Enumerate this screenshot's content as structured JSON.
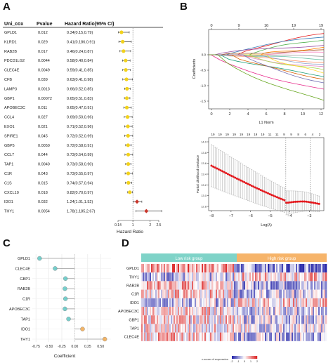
{
  "panels": {
    "a": "A",
    "b": "B",
    "c": "C",
    "d": "D"
  },
  "forest": {
    "headers": {
      "gene": "Uni_cox",
      "pvalue": "Pvalue",
      "hr": "Hazard Ratio(95% CI)"
    },
    "axis_title": "Hazard Ratio",
    "ticks": [
      "0.14",
      "1",
      "2",
      "2.5"
    ],
    "rows": [
      {
        "gene": "GPLD1",
        "p": "0.012",
        "hr_text": "0.34(0.15,0.79)",
        "hr": 0.34,
        "lo": 0.15,
        "hi": 0.79,
        "color": "#f2d21b"
      },
      {
        "gene": "KLRD1",
        "p": "0.029",
        "hr_text": "0.41(0.186,0.91)",
        "hr": 0.41,
        "lo": 0.186,
        "hi": 0.91,
        "color": "#f2d21b"
      },
      {
        "gene": "RAB2B",
        "p": "0.017",
        "hr_text": "0.46(0.24,0.87)",
        "hr": 0.46,
        "lo": 0.24,
        "hi": 0.87,
        "color": "#f2d21b"
      },
      {
        "gene": "PDCD1LG2",
        "p": "0.0044",
        "hr_text": "0.58(0.40,0.84)",
        "hr": 0.58,
        "lo": 0.4,
        "hi": 0.84,
        "color": "#f2d21b"
      },
      {
        "gene": "CLEC4E",
        "p": "0.0049",
        "hr_text": "0.59(0.41,0.85)",
        "hr": 0.59,
        "lo": 0.41,
        "hi": 0.85,
        "color": "#f2d21b"
      },
      {
        "gene": "CFB",
        "p": "0.039",
        "hr_text": "0.63(0.41,0.98)",
        "hr": 0.63,
        "lo": 0.41,
        "hi": 0.98,
        "color": "#f2d21b"
      },
      {
        "gene": "LAMP3",
        "p": "0.0013",
        "hr_text": "0.66(0.52,0.85)",
        "hr": 0.66,
        "lo": 0.52,
        "hi": 0.85,
        "color": "#f2d21b"
      },
      {
        "gene": "GBP1",
        "p": "0.00072",
        "hr_text": "0.65(0.51,0.83)",
        "hr": 0.65,
        "lo": 0.51,
        "hi": 0.83,
        "color": "#f2d21b"
      },
      {
        "gene": "APOBEC3C",
        "p": "0.011",
        "hr_text": "0.65(0.47,0.91)",
        "hr": 0.65,
        "lo": 0.47,
        "hi": 0.91,
        "color": "#f2d21b"
      },
      {
        "gene": "CCL4",
        "p": "0.027",
        "hr_text": "0.69(0.50,0.96)",
        "hr": 0.69,
        "lo": 0.5,
        "hi": 0.96,
        "color": "#f2d21b"
      },
      {
        "gene": "EXO1",
        "p": "0.021",
        "hr_text": "0.71(0.52,0.96)",
        "hr": 0.71,
        "lo": 0.52,
        "hi": 0.96,
        "color": "#f2d21b"
      },
      {
        "gene": "SPIRE1",
        "p": "0.045",
        "hr_text": "0.72(0.52,0.99)",
        "hr": 0.72,
        "lo": 0.52,
        "hi": 0.99,
        "color": "#f2d21b"
      },
      {
        "gene": "GBP5",
        "p": "0.0050",
        "hr_text": "0.72(0.58,0.91)",
        "hr": 0.72,
        "lo": 0.58,
        "hi": 0.91,
        "color": "#f2d21b"
      },
      {
        "gene": "CCL7",
        "p": "0.044",
        "hr_text": "0.73(0.54,0.99)",
        "hr": 0.73,
        "lo": 0.54,
        "hi": 0.99,
        "color": "#f2d21b"
      },
      {
        "gene": "TAP1",
        "p": "0.0040",
        "hr_text": "0.73(0.58,0.90)",
        "hr": 0.73,
        "lo": 0.58,
        "hi": 0.9,
        "color": "#f2d21b"
      },
      {
        "gene": "C1R",
        "p": "0.043",
        "hr_text": "0.73(0.55,0.97)",
        "hr": 0.73,
        "lo": 0.55,
        "hi": 0.97,
        "color": "#f2d21b"
      },
      {
        "gene": "C1S",
        "p": "0.015",
        "hr_text": "0.74(0.57,0.94)",
        "hr": 0.74,
        "lo": 0.57,
        "hi": 0.94,
        "color": "#f2d21b"
      },
      {
        "gene": "CXCL10",
        "p": "0.018",
        "hr_text": "0.82(0.70,0.97)",
        "hr": 0.82,
        "lo": 0.7,
        "hi": 0.97,
        "color": "#f2d21b"
      },
      {
        "gene": "IDO1",
        "p": "0.032",
        "hr_text": "1.24(1.01,1.52)",
        "hr": 1.24,
        "lo": 1.01,
        "hi": 1.52,
        "color": "#c8352a"
      },
      {
        "gene": "THY1",
        "p": "0.0054",
        "hr_text": "1.78(1.185,2.67)",
        "hr": 1.78,
        "lo": 1.185,
        "hi": 2.67,
        "color": "#c8352a"
      }
    ]
  },
  "lasso_path": {
    "top_ticks": [
      "0",
      "9",
      "16",
      "19",
      "19"
    ],
    "bottom_ticks": [
      "0",
      "2",
      "4",
      "6",
      "8",
      "10",
      "12"
    ],
    "xlabel": "L1 Norm",
    "ylabel": "Coefficients",
    "yticks": [
      "0.0",
      "-0.5",
      "-1.0",
      "-1.5"
    ]
  },
  "lasso_cv": {
    "top_ticks": [
      "19",
      "19",
      "19",
      "19",
      "19",
      "19",
      "19",
      "19",
      "11",
      "11",
      "9",
      "9",
      "8",
      "6",
      "4",
      "2"
    ],
    "xticks": [
      "−8",
      "−7",
      "−6",
      "−5",
      "−4",
      "−3"
    ],
    "xlabel": "Log(λ)",
    "ylabel": "Partial Likelihood Deviance",
    "yticks": [
      "12.8",
      "13.0",
      "13.2",
      "13.4",
      "13.6",
      "13.8",
      "14.0"
    ]
  },
  "coef_chart": {
    "xlabel": "Coefficient",
    "xticks": [
      "-0.75",
      "-0.50",
      "-0.25",
      "0.00",
      "0.25",
      "0.50"
    ],
    "genes": [
      "GPLD1",
      "CLEC4E",
      "GBP1",
      "RAB2B",
      "C1R",
      "APOBEC3C",
      "TAP1",
      "IDO1",
      "THY1"
    ],
    "values": [
      -0.68,
      -0.38,
      -0.18,
      -0.19,
      -0.18,
      -0.19,
      -0.12,
      0.15,
      0.58
    ],
    "neg_color": "#5fc8c4",
    "pos_color": "#f2a94f"
  },
  "heatmap": {
    "group_low": "Low risk group",
    "group_high": "High risk group",
    "low_color": "#7fd3c8",
    "high_color": "#f6b46a",
    "genes": [
      "GPLD1",
      "THY1",
      "RAB2B",
      "C1R",
      "IDO1",
      "APOBEC3C",
      "GBP1",
      "TAP1",
      "CLEC4E"
    ],
    "legend_title": "z-score of expression",
    "legend_ticks": [
      "-2",
      "-1",
      "0",
      "1",
      "2"
    ]
  },
  "chart_data": [
    {
      "type": "scatter",
      "xlabel": "Hazard Ratio",
      "categories": [
        "GPLD1",
        "KLRD1",
        "RAB2B",
        "PDCD1LG2",
        "CLEC4E",
        "CFB",
        "LAMP3",
        "GBP1",
        "APOBEC3C",
        "CCL4",
        "EXO1",
        "SPIRE1",
        "GBP5",
        "CCL7",
        "TAP1",
        "C1R",
        "C1S",
        "CXCL10",
        "IDO1",
        "THY1"
      ],
      "values": [
        0.34,
        0.41,
        0.46,
        0.58,
        0.59,
        0.63,
        0.66,
        0.65,
        0.65,
        0.69,
        0.71,
        0.72,
        0.72,
        0.73,
        0.73,
        0.73,
        0.74,
        0.82,
        1.24,
        1.78
      ]
    },
    {
      "type": "line",
      "xlabel": "Log(λ)",
      "ylabel": "Partial Likelihood Deviance"
    },
    {
      "type": "scatter",
      "xlabel": "Coefficient",
      "categories": [
        "GPLD1",
        "CLEC4E",
        "GBP1",
        "RAB2B",
        "C1R",
        "APOBEC3C",
        "TAP1",
        "IDO1",
        "THY1"
      ],
      "values": [
        -0.68,
        -0.38,
        -0.18,
        -0.19,
        -0.18,
        -0.19,
        -0.12,
        0.15,
        0.58
      ]
    },
    {
      "type": "heatmap",
      "categories": [
        "GPLD1",
        "THY1",
        "RAB2B",
        "C1R",
        "IDO1",
        "APOBEC3C",
        "GBP1",
        "TAP1",
        "CLEC4E"
      ]
    }
  ]
}
